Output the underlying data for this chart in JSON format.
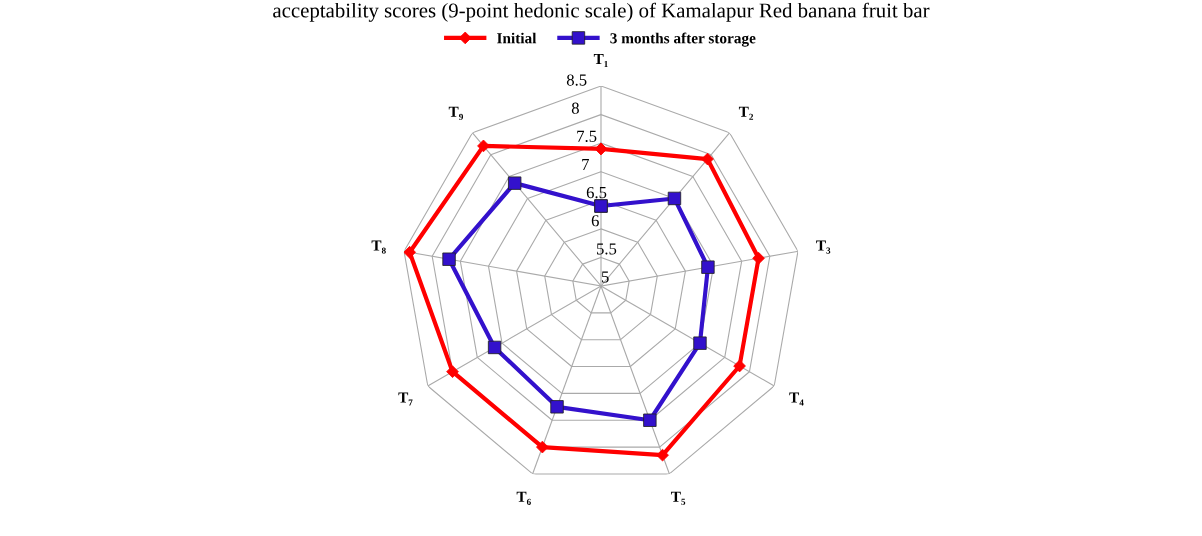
{
  "chart_data": {
    "type": "radar",
    "title": "acceptability scores (9-point hedonic scale) of Kamalapur Red banana fruit bar",
    "categories": [
      "T₁",
      "T₂",
      "T₃",
      "T₄",
      "T₅",
      "T₆",
      "T₇",
      "T₈",
      "T₉"
    ],
    "series": [
      {
        "name": "Initial",
        "color": "#ff0000",
        "marker": "diamond",
        "values": [
          7.4,
          7.9,
          7.8,
          7.8,
          8.15,
          8.0,
          8.0,
          8.4,
          8.2
        ]
      },
      {
        "name": "3 months after storage",
        "color": "#3311cc",
        "marker": "square",
        "values": [
          6.4,
          7.0,
          6.9,
          7.0,
          7.5,
          7.25,
          7.15,
          7.7,
          7.35
        ]
      }
    ],
    "ylim": [
      5,
      8.5
    ],
    "yticks": [
      5,
      5.5,
      6,
      6.5,
      7,
      7.5,
      8,
      8.5
    ],
    "grid": true,
    "legend": "top"
  }
}
